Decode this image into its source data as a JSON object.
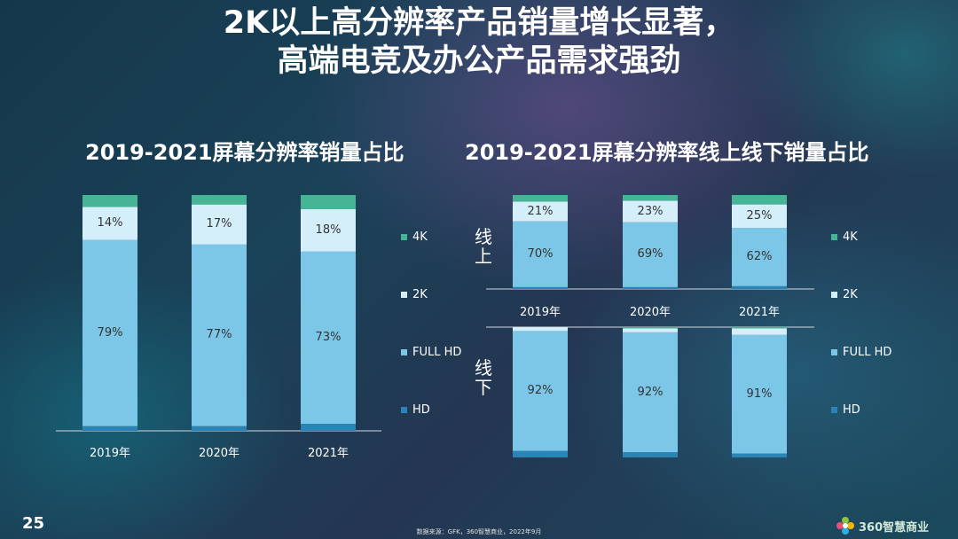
{
  "title_line1": "2K以上高分辨率产品销量增长显著，",
  "title_line2": "高端电竞及办公产品需求强劲",
  "page_number": "25",
  "source": "数据来源：GFK，360智慧商业，2022年9月",
  "brand": "360智慧商业",
  "colors": {
    "4K": "#45b596",
    "2K": "#d4eefa",
    "FULL HD": "#7cc7e7",
    "HD": "#2a84b5"
  },
  "chart_data": [
    {
      "type": "bar",
      "stacked": true,
      "title": "2019-2021屏幕分辨率销量占比",
      "categories": [
        "2019年",
        "2020年",
        "2021年"
      ],
      "series": [
        {
          "name": "HD",
          "values": [
            2,
            2,
            3
          ]
        },
        {
          "name": "FULL HD",
          "values": [
            79,
            77,
            73
          ]
        },
        {
          "name": "2K",
          "values": [
            14,
            17,
            18
          ]
        },
        {
          "name": "4K",
          "values": [
            5,
            4,
            6
          ]
        }
      ],
      "data_labels": {
        "FULL HD": [
          "79%",
          "77%",
          "73%"
        ],
        "2K": [
          "14%",
          "17%",
          "18%"
        ]
      },
      "legend": [
        "4K",
        "2K",
        "FULL HD",
        "HD"
      ],
      "ylim": [
        0,
        100
      ]
    },
    {
      "type": "bar",
      "stacked": true,
      "title": "2019-2021屏幕分辨率线上线下销量占比",
      "categories": [
        "2019年",
        "2020年",
        "2021年"
      ],
      "panels": [
        {
          "name": "线上",
          "series": [
            {
              "name": "HD",
              "values": [
                2,
                2,
                3
              ]
            },
            {
              "name": "FULL HD",
              "values": [
                70,
                69,
                62
              ]
            },
            {
              "name": "2K",
              "values": [
                21,
                23,
                25
              ]
            },
            {
              "name": "4K",
              "values": [
                7,
                6,
                10
              ]
            }
          ],
          "data_labels": {
            "FULL HD": [
              "70%",
              "69%",
              "62%"
            ],
            "2K": [
              "21%",
              "23%",
              "25%"
            ]
          }
        },
        {
          "name": "线下",
          "series": [
            {
              "name": "HD",
              "values": [
                5,
                4,
                3
              ]
            },
            {
              "name": "FULL HD",
              "values": [
                92,
                92,
                91
              ]
            },
            {
              "name": "2K",
              "values": [
                3,
                3,
                5
              ]
            },
            {
              "name": "4K",
              "values": [
                0,
                1,
                1
              ]
            }
          ],
          "data_labels": {
            "FULL HD": [
              "92%",
              "92%",
              "91%"
            ]
          }
        }
      ],
      "legend": [
        "4K",
        "2K",
        "FULL HD",
        "HD"
      ],
      "ylim": [
        0,
        100
      ]
    }
  ]
}
